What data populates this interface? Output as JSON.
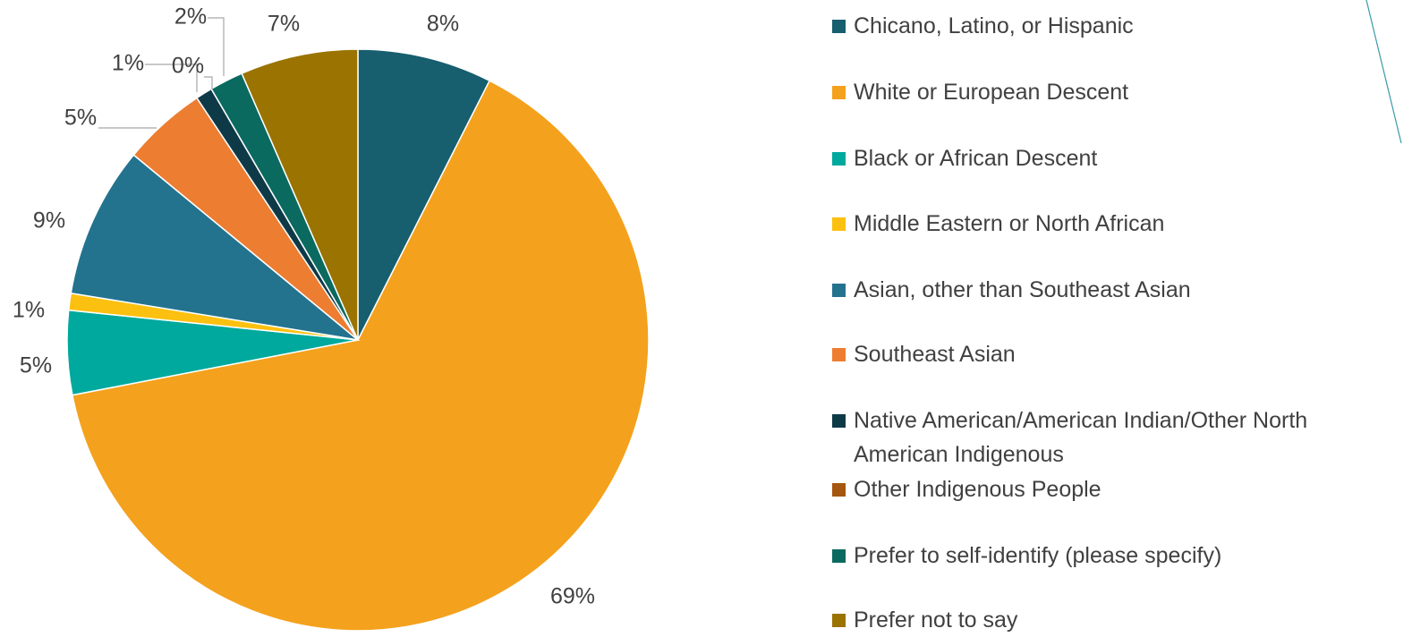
{
  "chart_data": {
    "type": "pie",
    "categories": [
      "Chicano, Latino, or Hispanic",
      "White or European Descent",
      "Black or African Descent",
      "Middle Eastern or North African",
      "Asian, other than Southeast Asian",
      "Southeast Asian",
      "Native American/American Indian/Other North American Indigenous",
      "Other Indigenous People",
      "Prefer to self-identify (please specify)",
      "Prefer not to say"
    ],
    "values": [
      8,
      69,
      5,
      1,
      9,
      5,
      1,
      0,
      2,
      7
    ],
    "value_labels": [
      "8%",
      "69%",
      "5%",
      "1%",
      "9%",
      "5%",
      "1%",
      "0%",
      "2%",
      "7%"
    ],
    "colors": [
      "#175e6e",
      "#f4a11d",
      "#00a99d",
      "#fcc010",
      "#23738f",
      "#ed7d31",
      "#0e3a48",
      "#a5570f",
      "#0b6a60",
      "#9a7300"
    ],
    "legend": "right"
  }
}
